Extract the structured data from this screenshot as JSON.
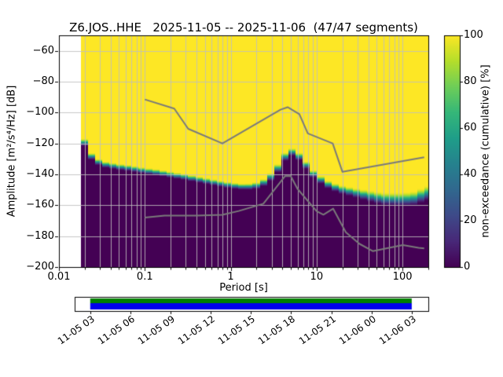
{
  "title": "Z6.JOS..HHE   2025-11-05 -- 2025-11-06  (47/47 segments)",
  "axes": {
    "xlabel": "Period [s]",
    "ylabel": "Amplitude [m²/s⁴/Hz] [dB]",
    "xlim": [
      0.01,
      200
    ],
    "ylim": [
      -200,
      -50
    ],
    "x_ticks": [
      0.01,
      0.1,
      1,
      10,
      100
    ],
    "x_tick_labels": [
      "0.01",
      "0.1",
      "1",
      "10",
      "100"
    ],
    "y_ticks": [
      -60,
      -80,
      -100,
      -120,
      -140,
      -160,
      -180,
      -200
    ],
    "y_tick_labels": [
      "−60",
      "−80",
      "−100",
      "−120",
      "−140",
      "−160",
      "−180",
      "−200"
    ],
    "grid": true,
    "minor_grid": true
  },
  "colorbar": {
    "label": "non-exceedance (cumulative) [%]",
    "ticks": [
      0,
      20,
      40,
      60,
      80,
      100
    ],
    "colormap": "viridis",
    "colormap_stops": [
      "#440154",
      "#482878",
      "#3e4a89",
      "#31688e",
      "#26828e",
      "#1f9e89",
      "#35b779",
      "#6ece58",
      "#b5de2b",
      "#fde725"
    ]
  },
  "chart_data": {
    "type": "heatmap",
    "description": "Cumulative PPSD: percentage of segments not exceeding a given amplitude; dark (0%) below the spectral distribution, yellow (100%) above, narrow viridis transition band at the distribution itself.",
    "period_bins_per_decade": 12,
    "periods": [
      0.018,
      0.022,
      0.028,
      0.035,
      0.05,
      0.07,
      0.1,
      0.14,
      0.2,
      0.3,
      0.45,
      0.7,
      1.0,
      1.5,
      2.2,
      3.2,
      4.2,
      5.0,
      6.0,
      7.5,
      9.5,
      13,
      18,
      27,
      40,
      60,
      90,
      130,
      200
    ],
    "level_0pct_db": [
      -116,
      -129,
      -134,
      -136,
      -137.5,
      -138.5,
      -140,
      -141,
      -142.5,
      -144,
      -146,
      -148,
      -149.5,
      -150.5,
      -149.5,
      -143,
      -132,
      -128,
      -130,
      -136.5,
      -143.5,
      -149,
      -152.5,
      -155,
      -158,
      -160.5,
      -161,
      -161,
      -157.5
    ],
    "level_100pct_db": [
      -110,
      -124,
      -129.5,
      -131.5,
      -133,
      -134,
      -135.5,
      -136.5,
      -138,
      -139.5,
      -141.5,
      -143.5,
      -145,
      -146,
      -144.5,
      -137,
      -126,
      -122.5,
      -124.5,
      -131,
      -138,
      -143.5,
      -146.5,
      -148.5,
      -150,
      -151.5,
      -151.5,
      -151,
      -147
    ],
    "noise_models": {
      "color": "#7a7a7a",
      "nhnm": {
        "periods": [
          0.1,
          0.22,
          0.32,
          0.8,
          3.8,
          4.6,
          6.3,
          7.9,
          15.4,
          20,
          179
        ],
        "db": [
          -91.5,
          -97.4,
          -110.5,
          -120.0,
          -98.1,
          -96.5,
          -101.0,
          -113.5,
          -120.0,
          -138.4,
          -128.9
        ]
      },
      "nlnm": {
        "periods": [
          0.1,
          0.17,
          0.4,
          0.8,
          1.24,
          2.4,
          4.3,
          5.0,
          6.0,
          10.0,
          12.0,
          15.6,
          21.9,
          31.6,
          45,
          70,
          101,
          154,
          179
        ],
        "db": [
          -168.0,
          -166.7,
          -166.7,
          -166.2,
          -163.7,
          -159.0,
          -141.1,
          -141.1,
          -149.4,
          -163.8,
          -166.1,
          -162.2,
          -177.5,
          -185.0,
          -189.7,
          -187.5,
          -185.8,
          -187.5,
          -187.9
        ]
      }
    }
  },
  "timeline": {
    "labels": [
      "11-05 03",
      "11-05 06",
      "11-05 09",
      "11-05 12",
      "11-05 15",
      "11-05 18",
      "11-05 21",
      "11-06 00",
      "11-06 03"
    ],
    "bar_colors": {
      "top": "#008000",
      "bottom": "#0000ee"
    },
    "coverage": [
      0.044,
      0.953
    ]
  }
}
